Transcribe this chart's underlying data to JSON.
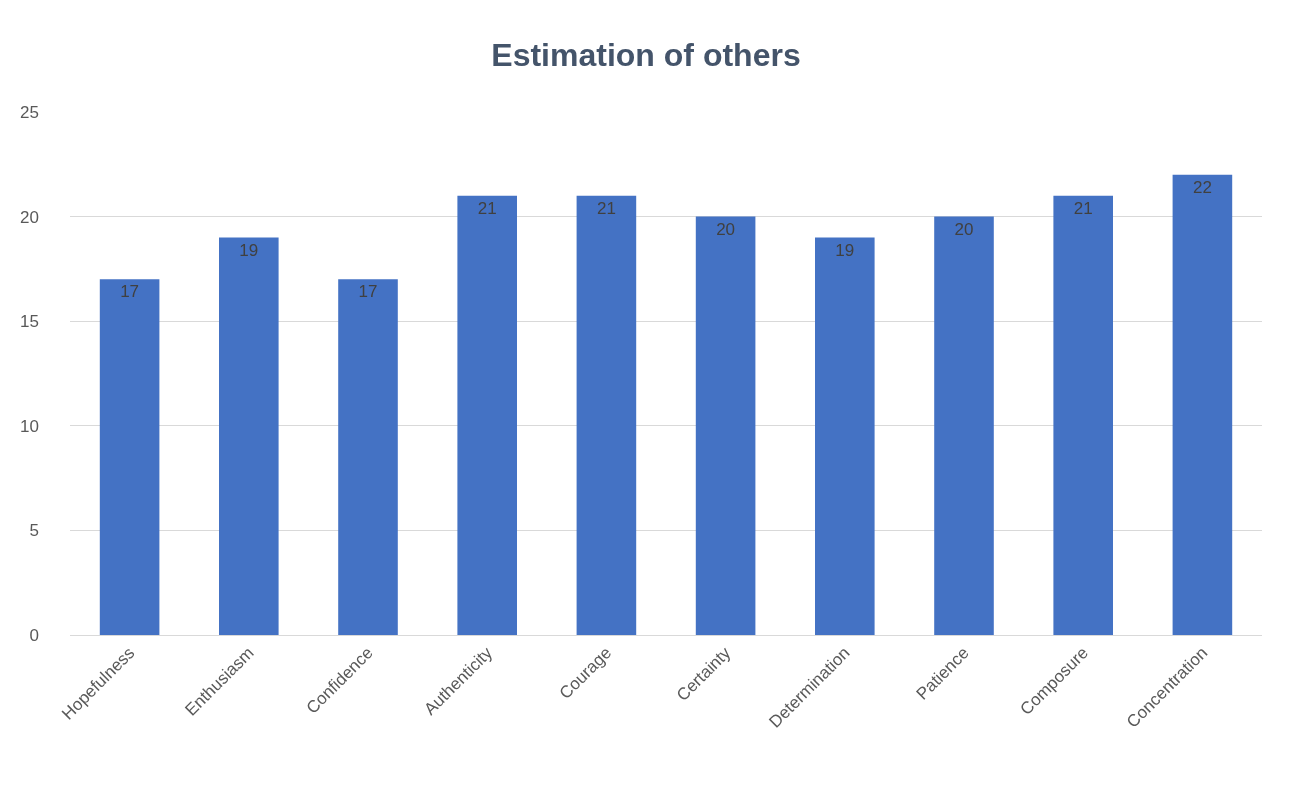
{
  "chart_data": {
    "type": "bar",
    "title": "Estimation of others",
    "categories": [
      "Hopefulness",
      "Enthusiasm",
      "Confidence",
      "Authenticity",
      "Courage",
      "Certainty",
      "Determination",
      "Patience",
      "Composure",
      "Concentration"
    ],
    "values": [
      17,
      19,
      17,
      21,
      21,
      20,
      19,
      20,
      21,
      22
    ],
    "color": "#4472c4",
    "ylim": [
      0,
      25
    ],
    "yticks": [
      0,
      5,
      10,
      15,
      20,
      25
    ],
    "grid": "y",
    "data_labels": true
  }
}
